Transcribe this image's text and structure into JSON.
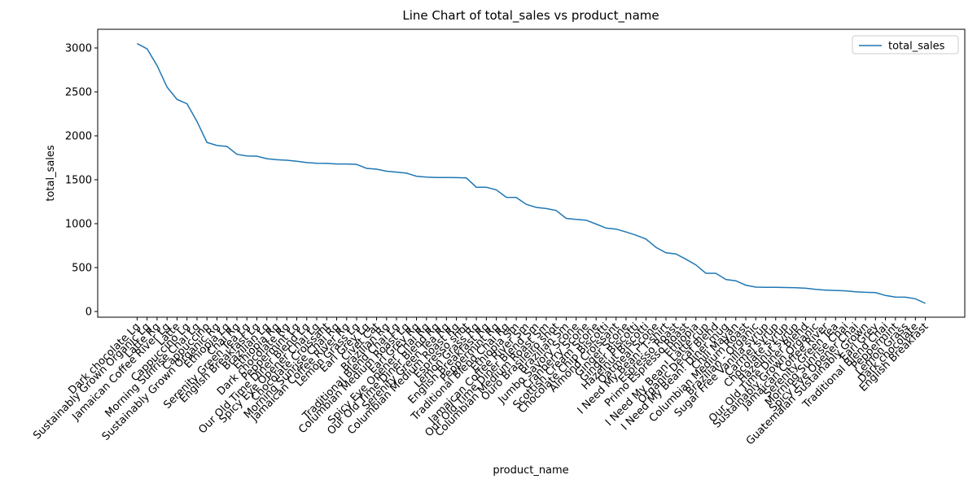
{
  "chart_data": {
    "type": "line",
    "title": "Line Chart of total_sales vs product_name",
    "x_label": "product_name",
    "y_label": "total_sales",
    "categories": [
      "Dark chocolate Lg",
      "Sustainably Grown Organic Lg",
      "Latte Rg",
      "Jamaican Coffee River Lg",
      "Latte",
      "Cappuccino Lg",
      "Morning Sunrise Chai Lg",
      "Cappuccino",
      "Sustainably Grown Organic Rg",
      "Ethiopia Lg",
      "Chai Rg",
      "Serenity Green Tea Lg",
      "English Breakfast Lg",
      "Brazilian Lg",
      "Ethiopia Rg",
      "Dark chocolate Rg",
      "Peppermint Lg",
      "Our Old Time Diner Blend Lg",
      "Spicy Eye Opener Chai Lg",
      "Chocolate Croissant",
      "Morning Sunrise Chai Rg",
      "Jamaican Coffee River Rg",
      "Lemon Grass Lg",
      "Earl Grey Lg",
      "Civet Cat",
      "Brazilian Rg",
      "Traditional Blend Chai Lg",
      "Columbian Medium Roast Lg",
      "Earl Grey Rg",
      "Spicy Eye Opener Chai Rg",
      "Our Old Time Diner Blend Rg",
      "Serenity Green Tea Rg",
      "Columbian Medium Roast Rg",
      "Espresso shot",
      "Lemon Grass Rg",
      "English Breakfast Rg",
      "Peppermint Rg",
      "Traditional Blend Chai Rg",
      "Ethiopia Sm",
      "Jamaican Coffee River Sm",
      "Our Old Time Diner Blend Sm",
      "Columbian Medium Roast Sm",
      "Ouro Brasileiro shot",
      "Brazilian Sm",
      "Jumbo Savory Scone",
      "Cranberry Scone",
      "Scottish Cream Scone",
      "Chocolate Chip Biscotti",
      "Almond Croissant",
      "Ginger Scone",
      "Ginger Biscotti",
      "Hazelnut Biscotti",
      "Oatmeal Scone",
      "I Need My Bean! T-shirt",
      "Espresso Roast",
      "Primo Espresso Roast",
      "Ethiopia",
      "I Need My Bean! Latte cup",
      "Organic Decaf Blend",
      "I Need My Bean! Diner mug",
      "Chili Mayan",
      "Columbian Medium Roast",
      "Brazilian - Organic",
      "Sugar Free Vanilla syrup",
      "Carmel syrup",
      "Chocolate syrup",
      "Hazelnut syrup",
      "Our Old Time Diner Blend",
      "Sustainably Grown Organic",
      "Jamaican Coffee River",
      "Serenity Green Tea",
      "Morning Sunrise Chai",
      "Spicy Eye Opener Chai",
      "Guatemalan Sustainably Grown",
      "Earl Grey",
      "Traditional Blend Chai",
      "Peppermint",
      "Lemon Grass",
      "Dark chocolate",
      "English Breakfast"
    ],
    "series": [
      {
        "name": "total_sales",
        "color": "#1f77b4",
        "values": [
          3050,
          2990,
          2800,
          2555,
          2415,
          2365,
          2165,
          1925,
          1890,
          1880,
          1790,
          1770,
          1768,
          1740,
          1728,
          1722,
          1710,
          1695,
          1688,
          1686,
          1680,
          1680,
          1675,
          1630,
          1620,
          1597,
          1587,
          1575,
          1540,
          1530,
          1525,
          1525,
          1524,
          1520,
          1415,
          1414,
          1385,
          1300,
          1298,
          1220,
          1185,
          1172,
          1150,
          1060,
          1048,
          1040,
          995,
          950,
          938,
          905,
          868,
          825,
          730,
          668,
          655,
          595,
          530,
          435,
          435,
          365,
          350,
          300,
          278,
          275,
          275,
          273,
          270,
          265,
          252,
          243,
          240,
          235,
          225,
          218,
          215,
          182,
          165,
          163,
          145,
          92
        ]
      }
    ],
    "ylim": [
      -65,
      3213
    ],
    "yticks": [
      0,
      500,
      1000,
      1500,
      2000,
      2500,
      3000
    ],
    "legend": "upper right"
  }
}
